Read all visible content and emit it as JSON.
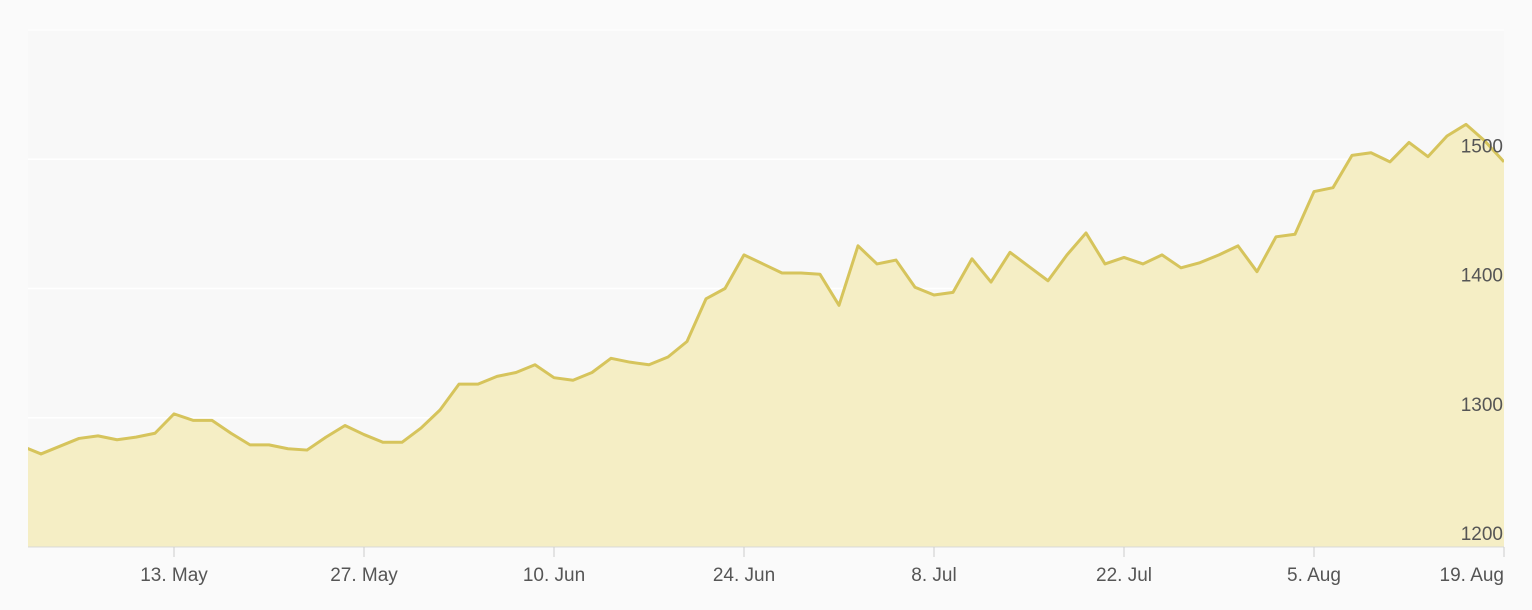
{
  "chart_data": {
    "type": "area",
    "categories": [
      null,
      null,
      null,
      null,
      null,
      null,
      null,
      null,
      "13. May",
      null,
      null,
      null,
      null,
      null,
      null,
      null,
      null,
      null,
      "27. May",
      null,
      null,
      null,
      null,
      null,
      null,
      null,
      null,
      null,
      "10. Jun",
      null,
      null,
      null,
      null,
      null,
      null,
      null,
      null,
      null,
      "24. Jun",
      null,
      null,
      null,
      null,
      null,
      null,
      null,
      null,
      null,
      "8. Jul",
      null,
      null,
      null,
      null,
      null,
      null,
      null,
      null,
      null,
      "22. Jul",
      null,
      null,
      null,
      null,
      null,
      null,
      null,
      null,
      null,
      "5. Aug",
      null,
      null,
      null,
      null,
      null,
      null,
      null,
      null,
      null,
      "19. Aug"
    ],
    "values": [
      1278,
      1272,
      1278,
      1284,
      1286,
      1283,
      1285,
      1288,
      1303,
      1298,
      1298,
      1288,
      1279,
      1279,
      1276,
      1275,
      1285,
      1294,
      1287,
      1281,
      1281,
      1292,
      1306,
      1326,
      1326,
      1332,
      1335,
      1341,
      1331,
      1329,
      1335,
      1346,
      1343,
      1341,
      1347,
      1359,
      1392,
      1400,
      1426,
      1419,
      1412,
      1412,
      1411,
      1387,
      1433,
      1419,
      1422,
      1401,
      1395,
      1397,
      1423,
      1405,
      1428,
      1417,
      1406,
      1426,
      1443,
      1419,
      1424,
      1419,
      1426,
      1416,
      1420,
      1426,
      1433,
      1413,
      1440,
      1442,
      1475,
      1478,
      1503,
      1505,
      1498,
      1513,
      1502,
      1518,
      1527,
      1514,
      1498
    ],
    "color": "#d6c45c",
    "fill_color": "#f5eec5",
    "ylim": [
      1200,
      1600
    ],
    "yticks": [
      1200,
      1300,
      1400,
      1500
    ],
    "grid": true
  }
}
